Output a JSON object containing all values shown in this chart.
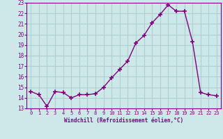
{
  "x": [
    0,
    1,
    2,
    3,
    4,
    5,
    6,
    7,
    8,
    9,
    10,
    11,
    12,
    13,
    14,
    15,
    16,
    17,
    18,
    19,
    20,
    21,
    22,
    23
  ],
  "y": [
    14.6,
    14.3,
    13.2,
    14.6,
    14.5,
    14.0,
    14.3,
    14.3,
    14.4,
    15.0,
    15.9,
    16.7,
    17.5,
    19.2,
    19.9,
    21.1,
    21.9,
    22.8,
    22.2,
    22.2,
    19.3,
    14.5,
    14.3,
    14.2
  ],
  "line_color": "#800080",
  "marker": "+",
  "markersize": 4,
  "linewidth": 1.0,
  "xlabel": "Windchill (Refroidissement éolien,°C)",
  "xlim": [
    -0.5,
    23.5
  ],
  "ylim": [
    13,
    23
  ],
  "yticks": [
    13,
    14,
    15,
    16,
    17,
    18,
    19,
    20,
    21,
    22,
    23
  ],
  "xticks": [
    0,
    1,
    2,
    3,
    4,
    5,
    6,
    7,
    8,
    9,
    10,
    11,
    12,
    13,
    14,
    15,
    16,
    17,
    18,
    19,
    20,
    21,
    22,
    23
  ],
  "bg_color": "#cce8e8",
  "grid_color": "#b0d0d0",
  "tick_color": "#800080",
  "xlabel_color": "#800080",
  "tick_label_color": "#800080"
}
